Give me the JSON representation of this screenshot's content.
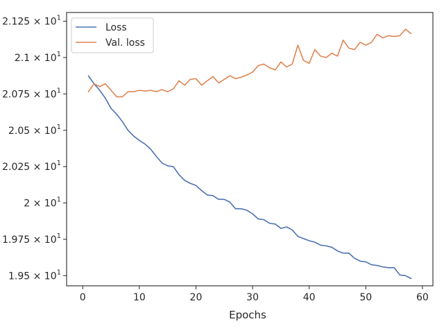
{
  "chart_data": {
    "type": "line",
    "xlabel": "Epochs",
    "ylabel": "",
    "xlim": [
      -2.85,
      61.85
    ],
    "ylim": [
      19.43,
      21.31
    ],
    "x_ticks": [
      0,
      10,
      20,
      30,
      40,
      50,
      60
    ],
    "y_ticks": [
      {
        "value": 19.5,
        "mantissa": "1.95",
        "exp": "1"
      },
      {
        "value": 19.75,
        "mantissa": "1.975",
        "exp": "1"
      },
      {
        "value": 20.0,
        "mantissa": "2",
        "exp": "1"
      },
      {
        "value": 20.25,
        "mantissa": "2.025",
        "exp": "1"
      },
      {
        "value": 20.5,
        "mantissa": "2.05",
        "exp": "1"
      },
      {
        "value": 20.75,
        "mantissa": "2.075",
        "exp": "1"
      },
      {
        "value": 21.0,
        "mantissa": "2.1",
        "exp": "1"
      },
      {
        "value": 21.25,
        "mantissa": "2.125",
        "exp": "1"
      }
    ],
    "legend": "top-left",
    "grid": false,
    "x": [
      1,
      2,
      3,
      4,
      5,
      6,
      7,
      8,
      9,
      10,
      11,
      12,
      13,
      14,
      15,
      16,
      17,
      18,
      19,
      20,
      21,
      22,
      23,
      24,
      25,
      26,
      27,
      28,
      29,
      30,
      31,
      32,
      33,
      34,
      35,
      36,
      37,
      38,
      39,
      40,
      41,
      42,
      43,
      44,
      45,
      46,
      47,
      48,
      49,
      50,
      51,
      52,
      53,
      54,
      55,
      56,
      57,
      58
    ],
    "series": [
      {
        "name": "Loss",
        "color": "#4c72b0",
        "values": [
          20.875,
          20.82,
          20.775,
          20.72,
          20.65,
          20.61,
          20.56,
          20.5,
          20.46,
          20.43,
          20.405,
          20.37,
          20.32,
          20.275,
          20.255,
          20.25,
          20.195,
          20.155,
          20.135,
          20.12,
          20.085,
          20.055,
          20.05,
          20.025,
          20.025,
          20.005,
          19.96,
          19.96,
          19.95,
          19.925,
          19.89,
          19.885,
          19.86,
          19.855,
          19.825,
          19.835,
          19.815,
          19.77,
          19.755,
          19.74,
          19.73,
          19.71,
          19.705,
          19.695,
          19.67,
          19.655,
          19.655,
          19.62,
          19.6,
          19.595,
          19.575,
          19.57,
          19.56,
          19.555,
          19.555,
          19.505,
          19.5,
          19.48
        ]
      },
      {
        "name": "Val. loss",
        "color": "#dd8452",
        "values": [
          20.765,
          20.82,
          20.8,
          20.82,
          20.775,
          20.73,
          20.73,
          20.765,
          20.765,
          20.775,
          20.77,
          20.775,
          20.765,
          20.78,
          20.765,
          20.785,
          20.84,
          20.81,
          20.85,
          20.855,
          20.81,
          20.84,
          20.87,
          20.825,
          20.85,
          20.875,
          20.855,
          20.865,
          20.88,
          20.9,
          20.945,
          20.955,
          20.93,
          20.915,
          20.97,
          20.935,
          20.955,
          21.085,
          20.98,
          20.96,
          21.055,
          21.01,
          21.0,
          21.03,
          21.01,
          21.12,
          21.065,
          21.055,
          21.105,
          21.085,
          21.105,
          21.16,
          21.135,
          21.15,
          21.145,
          21.15,
          21.195,
          21.165
        ]
      }
    ]
  }
}
